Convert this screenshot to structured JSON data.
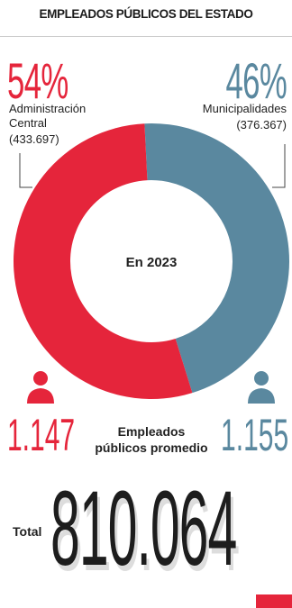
{
  "chart_data": {
    "type": "pie",
    "title": "EMPLEADOS PÚBLICOS DEL ESTADO",
    "center_label": "En 2023",
    "categories": [
      "Administración Central",
      "Municipalidades"
    ],
    "values": [
      54,
      46
    ],
    "value_labels": [
      "54%",
      "46%"
    ],
    "counts": [
      "(433.697)",
      "(376.367)"
    ],
    "colors": [
      "#e5253b",
      "#5a889f"
    ],
    "averages": [
      "1.147",
      "1.155"
    ],
    "average_label": "Empleados públicos promedio",
    "total_label": "Total",
    "total": "810.064"
  }
}
